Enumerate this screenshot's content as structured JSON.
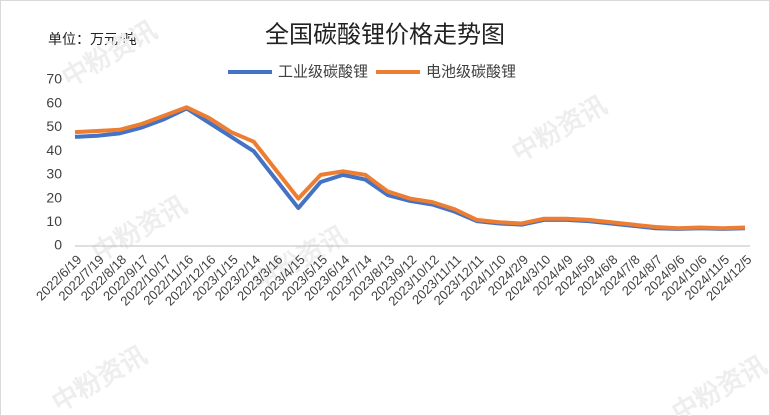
{
  "chart_data": {
    "type": "line",
    "title": "全国碳酸锂价格走势图",
    "unit_label": "单位：万元/吨",
    "watermark": "中粉资讯",
    "categories": [
      "2022/6/19",
      "2022/7/19",
      "2022/8/18",
      "2022/9/17",
      "2022/10/17",
      "2022/11/16",
      "2022/12/16",
      "2023/1/15",
      "2023/2/14",
      "2023/3/16",
      "2023/4/15",
      "2023/5/15",
      "2023/6/14",
      "2023/7/14",
      "2023/8/13",
      "2023/9/12",
      "2023/10/12",
      "2023/11/11",
      "2023/12/11",
      "2024/1/10",
      "2024/2/9",
      "2024/3/10",
      "2024/4/9",
      "2024/5/9",
      "2024/6/8",
      "2024/7/8",
      "2024/8/7",
      "2024/9/6",
      "2024/10/6",
      "2024/11/5",
      "2024/12/5"
    ],
    "series": [
      {
        "name": "工业级碳酸锂",
        "color": "#4472c4",
        "values": [
          46,
          46.5,
          47.5,
          50,
          53.5,
          58,
          52,
          46,
          40,
          28,
          16,
          27,
          30,
          28,
          21.5,
          19,
          17.5,
          14.5,
          10.5,
          9.5,
          9,
          11,
          11,
          10.5,
          9.5,
          8.5,
          7.5,
          7.2,
          7.5,
          7.2,
          7.5
        ]
      },
      {
        "name": "电池级碳酸锂",
        "color": "#ed7d31",
        "values": [
          48,
          48.5,
          49,
          51.5,
          55,
          58.5,
          54,
          48,
          44,
          32,
          20,
          30,
          31.5,
          30,
          23,
          20,
          18.5,
          15.5,
          11,
          10,
          9.5,
          11.5,
          11.5,
          11,
          10,
          9,
          8,
          7.5,
          7.8,
          7.5,
          7.8
        ]
      }
    ],
    "ylim": [
      0,
      70
    ],
    "yticks": [
      0,
      10,
      20,
      30,
      40,
      50,
      60,
      70
    ],
    "grid": false,
    "legend": "top"
  }
}
